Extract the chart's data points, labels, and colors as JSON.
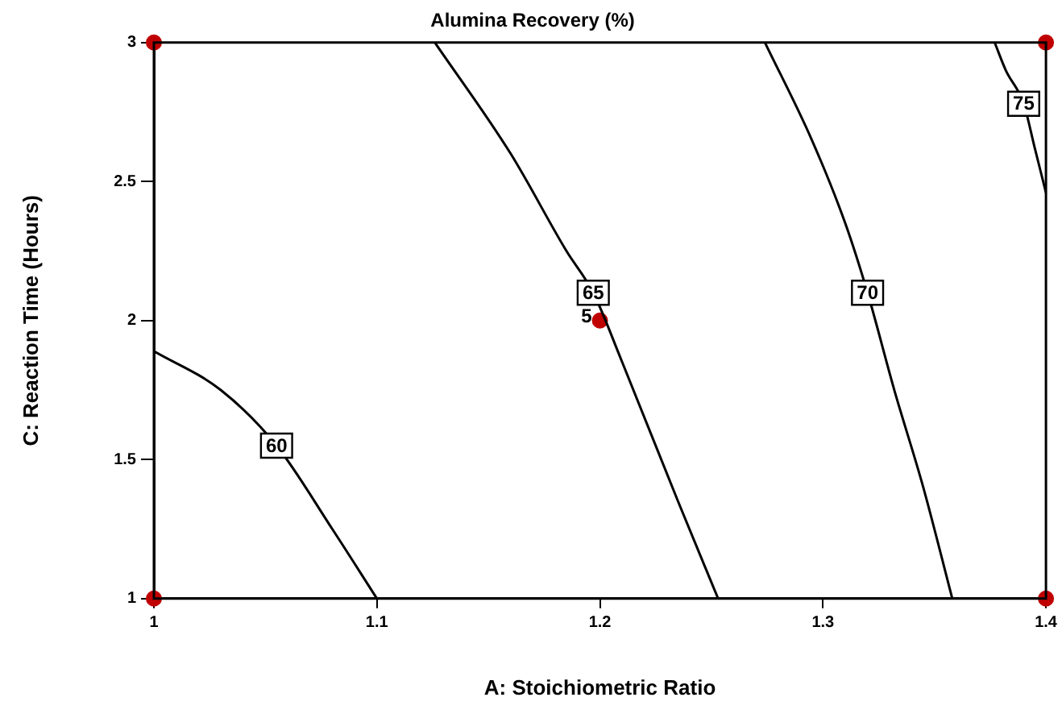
{
  "chart_data": {
    "type": "line",
    "title": "Alumina Recovery (%)",
    "xlabel": "A: Stoichiometric Ratio",
    "ylabel": "C: Reaction Time (Hours)",
    "xlim": [
      1,
      1.4
    ],
    "xticks": [
      1,
      1.1,
      1.2,
      1.3,
      1.4
    ],
    "ylim": [
      1,
      3
    ],
    "yticks": [
      1,
      1.5,
      2,
      2.5,
      3
    ],
    "grid": false,
    "legend": false,
    "marker": "none",
    "series": [
      {
        "name": "60",
        "color": "#000000",
        "x": [
          1,
          1.03,
          1.055,
          1.08,
          1.1
        ],
        "values": [
          1.89,
          1.75,
          1.55,
          1.25,
          1
        ]
      },
      {
        "name": "65",
        "color": "#000000",
        "x": [
          1.126,
          1.16,
          1.185,
          1.197,
          1.21,
          1.235,
          1.253
        ],
        "values": [
          3,
          2.6,
          2.25,
          2.1,
          1.85,
          1.35,
          1
        ]
      },
      {
        "name": "70",
        "color": "#000000",
        "x": [
          1.274,
          1.295,
          1.31,
          1.32,
          1.332,
          1.345,
          1.358
        ],
        "values": [
          3,
          2.65,
          2.35,
          2.1,
          1.75,
          1.4,
          1
        ]
      },
      {
        "name": "75",
        "color": "#000000",
        "x": [
          1.377,
          1.382,
          1.39,
          1.395,
          1.4
        ],
        "values": [
          3,
          2.9,
          2.78,
          2.62,
          2.46
        ]
      },
      {
        "type": "scatter",
        "color": "#c00000",
        "marker": "circle",
        "x": [
          1,
          1,
          1.4,
          1.4,
          1.2
        ],
        "values": [
          1,
          3,
          1,
          3,
          2
        ]
      }
    ],
    "annotations": [
      {
        "text": "5",
        "x": 1.2,
        "y": 2
      }
    ]
  }
}
